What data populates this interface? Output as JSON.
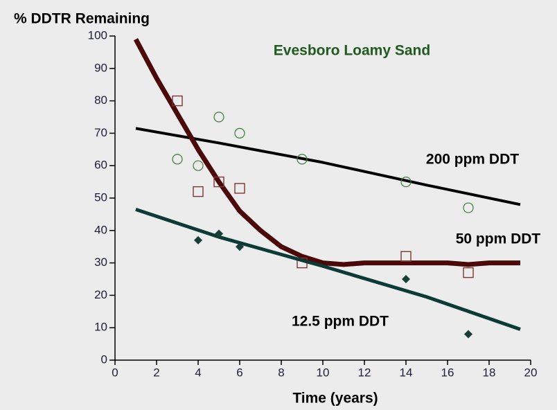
{
  "chart_data": {
    "type": "scatter",
    "title": "Evesboro Loamy Sand",
    "y_label": "% DDTR Remaining",
    "x_label": "Time  (years)",
    "xlim": [
      0,
      20
    ],
    "xticks": [
      0,
      2,
      4,
      6,
      8,
      10,
      12,
      14,
      16,
      18,
      20
    ],
    "ylim": [
      0,
      100
    ],
    "yticks": [
      0,
      10,
      20,
      30,
      40,
      50,
      60,
      70,
      80,
      90,
      100
    ],
    "series": [
      {
        "name": "200 ppm DDT",
        "color": "#3f7a3f",
        "line_color": "#000000",
        "marker": "circle",
        "x": [
          3,
          4,
          5,
          6,
          9,
          14,
          17
        ],
        "values": [
          62,
          60,
          75,
          70,
          62,
          55,
          47
        ],
        "fit_x": [
          1,
          5,
          10,
          15,
          19.5
        ],
        "fit_values": [
          71.5,
          67,
          61,
          54,
          48
        ]
      },
      {
        "name": "50 ppm DDT",
        "color": "#7a3535",
        "line_color": "#4a0808",
        "marker": "square",
        "x": [
          3,
          4,
          5,
          6,
          9,
          14,
          17
        ],
        "values": [
          80,
          52,
          55,
          53,
          30,
          32,
          27
        ],
        "fit_x": [
          1,
          2,
          3,
          4,
          5,
          6,
          7,
          8,
          9,
          10,
          11,
          12,
          13,
          14,
          15,
          16,
          17,
          18,
          19.5
        ],
        "fit_values": [
          99,
          87,
          76,
          65,
          55,
          46,
          40,
          35,
          32,
          30,
          29.5,
          30,
          30,
          30,
          30,
          30,
          29.5,
          30,
          30
        ]
      },
      {
        "name": "12.5 ppm DDT",
        "color": "#173f38",
        "line_color": "#0b3a37",
        "marker": "diamond",
        "x": [
          4,
          5,
          6,
          14,
          17
        ],
        "values": [
          37,
          39,
          35,
          25,
          8
        ],
        "fit_x": [
          1,
          5,
          10,
          15,
          19.5
        ],
        "fit_values": [
          46.5,
          38,
          29,
          19.5,
          9.5
        ]
      }
    ]
  }
}
